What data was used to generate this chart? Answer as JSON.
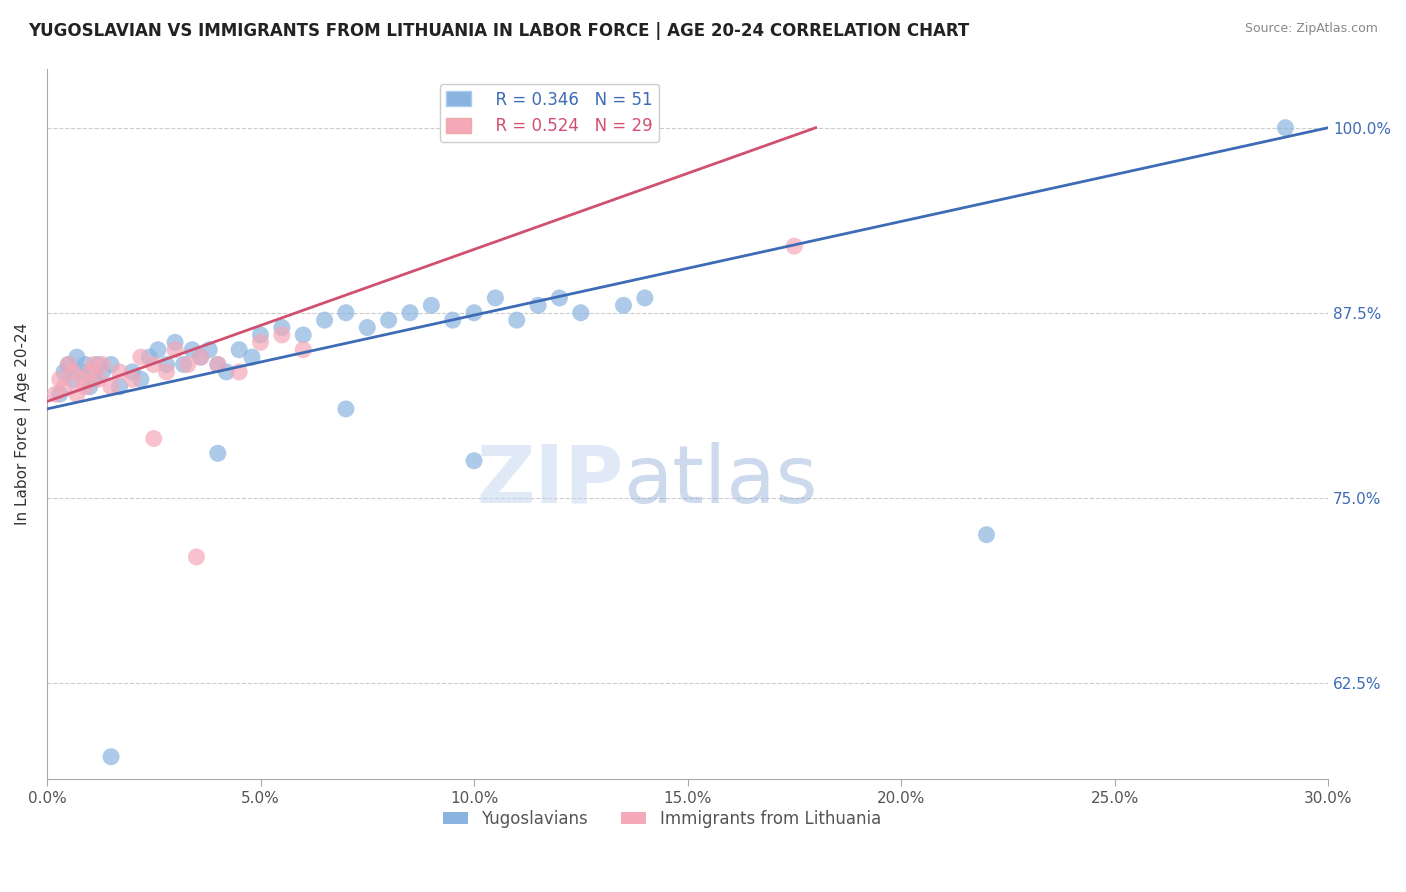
{
  "title": "YUGOSLAVIAN VS IMMIGRANTS FROM LITHUANIA IN LABOR FORCE | AGE 20-24 CORRELATION CHART",
  "source": "Source: ZipAtlas.com",
  "ylabel": "In Labor Force | Age 20-24",
  "x_tick_labels": [
    "0.0%",
    "5.0%",
    "10.0%",
    "15.0%",
    "20.0%",
    "25.0%",
    "30.0%"
  ],
  "x_tick_values": [
    0,
    5,
    10,
    15,
    20,
    25,
    30
  ],
  "y_tick_labels": [
    "62.5%",
    "75.0%",
    "87.5%",
    "100.0%"
  ],
  "y_tick_values": [
    62.5,
    75.0,
    87.5,
    100.0
  ],
  "xlim": [
    0,
    30
  ],
  "ylim": [
    56,
    104
  ],
  "blue_R": 0.346,
  "blue_N": 51,
  "pink_R": 0.524,
  "pink_N": 29,
  "legend_labels": [
    "Yugoslavians",
    "Immigrants from Lithuania"
  ],
  "blue_color": "#8ab4e0",
  "pink_color": "#f4a8b8",
  "blue_line_color": "#3d6bb5",
  "pink_line_color": "#d05070",
  "watermark_zip": "ZIP",
  "watermark_atlas": "atlas",
  "blue_points": [
    [
      0.3,
      82.0
    ],
    [
      0.4,
      83.5
    ],
    [
      0.5,
      84.0
    ],
    [
      0.6,
      83.0
    ],
    [
      0.7,
      84.5
    ],
    [
      0.8,
      83.5
    ],
    [
      0.9,
      84.0
    ],
    [
      1.0,
      82.5
    ],
    [
      1.1,
      83.0
    ],
    [
      1.2,
      84.0
    ],
    [
      1.3,
      83.5
    ],
    [
      1.5,
      84.0
    ],
    [
      1.7,
      82.5
    ],
    [
      2.0,
      83.5
    ],
    [
      2.2,
      83.0
    ],
    [
      2.4,
      84.5
    ],
    [
      2.6,
      85.0
    ],
    [
      2.8,
      84.0
    ],
    [
      3.0,
      85.5
    ],
    [
      3.2,
      84.0
    ],
    [
      3.4,
      85.0
    ],
    [
      3.6,
      84.5
    ],
    [
      3.8,
      85.0
    ],
    [
      4.0,
      84.0
    ],
    [
      4.2,
      83.5
    ],
    [
      4.5,
      85.0
    ],
    [
      4.8,
      84.5
    ],
    [
      5.0,
      86.0
    ],
    [
      5.5,
      86.5
    ],
    [
      6.0,
      86.0
    ],
    [
      6.5,
      87.0
    ],
    [
      7.0,
      87.5
    ],
    [
      7.5,
      86.5
    ],
    [
      8.0,
      87.0
    ],
    [
      8.5,
      87.5
    ],
    [
      9.0,
      88.0
    ],
    [
      9.5,
      87.0
    ],
    [
      10.0,
      87.5
    ],
    [
      10.5,
      88.5
    ],
    [
      11.0,
      87.0
    ],
    [
      11.5,
      88.0
    ],
    [
      12.0,
      88.5
    ],
    [
      12.5,
      87.5
    ],
    [
      13.5,
      88.0
    ],
    [
      4.0,
      78.0
    ],
    [
      7.0,
      81.0
    ],
    [
      10.0,
      77.5
    ],
    [
      14.0,
      88.5
    ],
    [
      22.0,
      72.5
    ],
    [
      1.5,
      57.5
    ],
    [
      29.0,
      100.0
    ]
  ],
  "pink_points": [
    [
      0.2,
      82.0
    ],
    [
      0.3,
      83.0
    ],
    [
      0.4,
      82.5
    ],
    [
      0.5,
      84.0
    ],
    [
      0.6,
      83.5
    ],
    [
      0.7,
      82.0
    ],
    [
      0.8,
      83.0
    ],
    [
      0.9,
      82.5
    ],
    [
      1.0,
      83.5
    ],
    [
      1.1,
      84.0
    ],
    [
      1.2,
      83.0
    ],
    [
      1.3,
      84.0
    ],
    [
      1.5,
      82.5
    ],
    [
      1.7,
      83.5
    ],
    [
      2.0,
      83.0
    ],
    [
      2.2,
      84.5
    ],
    [
      2.5,
      84.0
    ],
    [
      2.8,
      83.5
    ],
    [
      3.0,
      85.0
    ],
    [
      3.3,
      84.0
    ],
    [
      3.6,
      84.5
    ],
    [
      4.0,
      84.0
    ],
    [
      4.5,
      83.5
    ],
    [
      5.0,
      85.5
    ],
    [
      5.5,
      86.0
    ],
    [
      6.0,
      85.0
    ],
    [
      2.5,
      79.0
    ],
    [
      3.5,
      71.0
    ],
    [
      17.5,
      92.0
    ]
  ]
}
